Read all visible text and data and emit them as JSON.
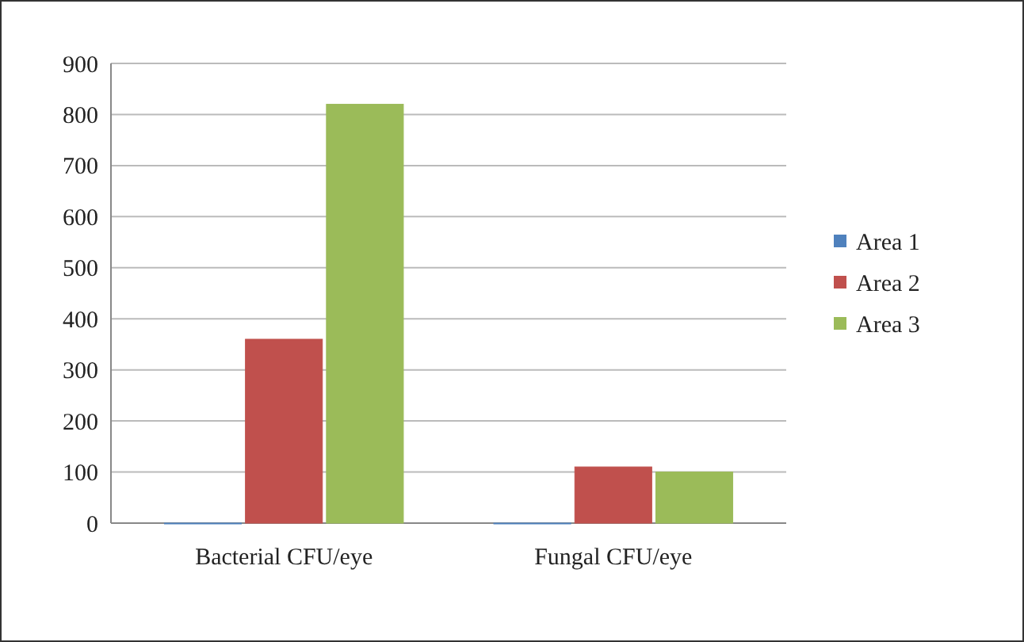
{
  "chart_data": {
    "type": "bar",
    "categories": [
      "Bacterial CFU/eye",
      "Fungal CFU/eye"
    ],
    "series": [
      {
        "name": "Area 1",
        "color": "#4f81bd",
        "values": [
          0,
          0
        ]
      },
      {
        "name": "Area 2",
        "color": "#c0504d",
        "values": [
          360,
          110
        ]
      },
      {
        "name": "Area 3",
        "color": "#9bbb59",
        "values": [
          820,
          100
        ]
      }
    ],
    "ylim": [
      0,
      900
    ],
    "yticks": [
      0,
      100,
      200,
      300,
      400,
      500,
      600,
      700,
      800,
      900
    ],
    "grid": "y",
    "legend": "right"
  }
}
